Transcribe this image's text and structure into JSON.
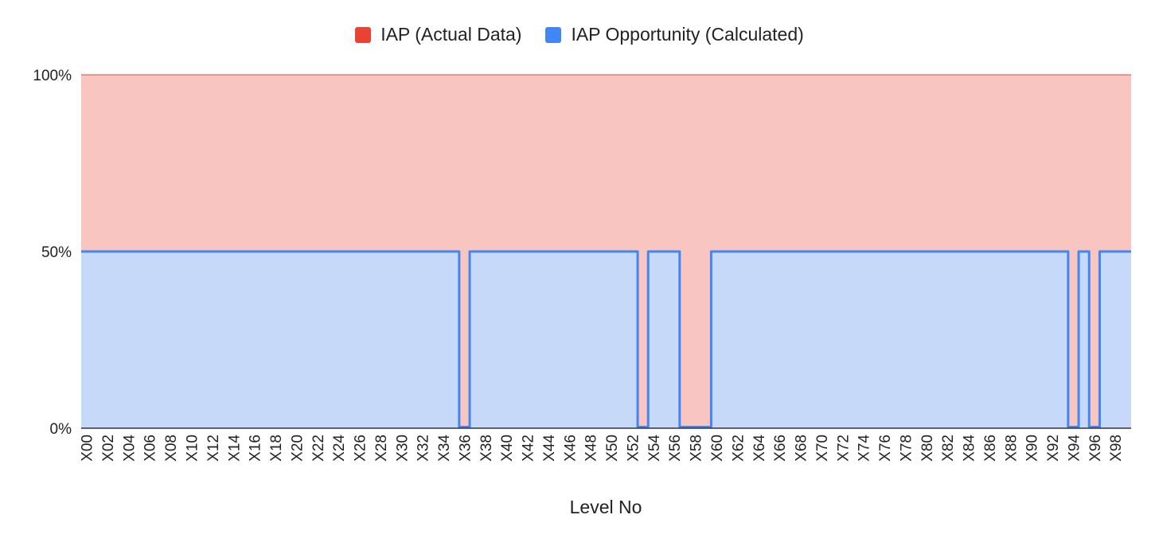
{
  "chart_data": {
    "type": "area",
    "stacked": "percent",
    "step": true,
    "xlabel": "Level No",
    "ylabel": "",
    "ylim": [
      0,
      100
    ],
    "yticks": [
      "0%",
      "50%",
      "100%"
    ],
    "legend": [
      {
        "name": "IAP (Actual Data)",
        "color": "#ea4335"
      },
      {
        "name": "IAP Opportunity (Calculated)",
        "color": "#4285f4"
      }
    ],
    "colors": {
      "actual_fill": "#f8c5c1",
      "opportunity_fill": "#c6d9f9",
      "opportunity_line": "#4285f4",
      "actual_line": "#ea4335"
    },
    "x_tick_labels": [
      "X00",
      "X02",
      "X04",
      "X06",
      "X08",
      "X10",
      "X12",
      "X14",
      "X16",
      "X18",
      "X20",
      "X22",
      "X24",
      "X26",
      "X28",
      "X30",
      "X32",
      "X34",
      "X36",
      "X38",
      "X40",
      "X42",
      "X44",
      "X46",
      "X48",
      "X50",
      "X52",
      "X54",
      "X56",
      "X58",
      "X60",
      "X62",
      "X64",
      "X66",
      "X68",
      "X70",
      "X72",
      "X74",
      "X76",
      "X78",
      "X80",
      "X82",
      "X84",
      "X86",
      "X88",
      "X90",
      "X92",
      "X94",
      "X96",
      "X98"
    ],
    "series": [
      {
        "name": "IAP (Actual Data)",
        "values_by_level": "100 - opportunity"
      },
      {
        "name": "IAP Opportunity (Calculated)",
        "default": 50,
        "zero_levels": [
          36,
          53,
          57,
          58,
          59,
          94,
          96
        ]
      }
    ],
    "levels": 100
  }
}
